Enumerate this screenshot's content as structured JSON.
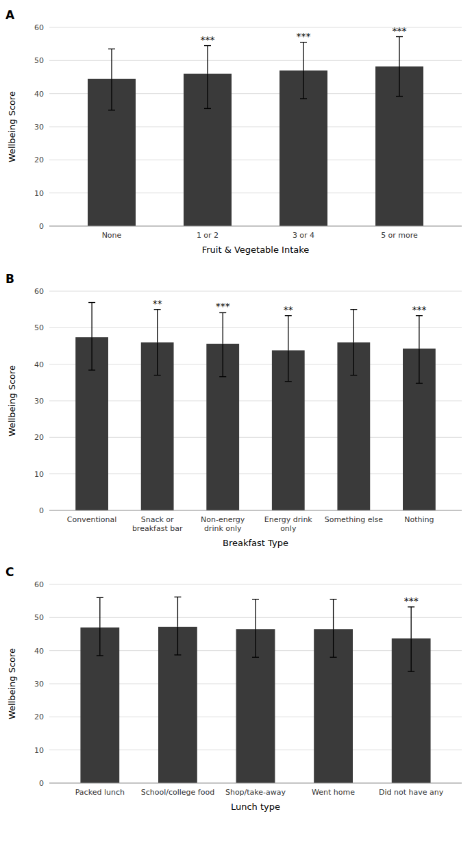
{
  "chart_data": [
    {
      "type": "bar",
      "title": "A",
      "categories": [
        "None",
        "1 or 2",
        "3 or 4",
        "5 or more"
      ],
      "values": [
        44.5,
        46.0,
        47.0,
        48.2
      ],
      "errors_upper": [
        9.0,
        8.5,
        8.5,
        9.0
      ],
      "errors_lower": [
        9.5,
        10.5,
        8.5,
        9.0
      ],
      "significance": [
        null,
        "***",
        "***",
        "***"
      ],
      "xlabel": "Fruit & Vegetable Intake",
      "ylabel": "Wellbeing Score",
      "color": "#3a3a3a",
      "ylim": [
        0,
        60
      ],
      "yticks": [
        0,
        10,
        20,
        30,
        40,
        50,
        60
      ],
      "grid": true
    },
    {
      "type": "bar",
      "title": "B",
      "categories": [
        "Conventional",
        "Snack or\nbreakfast bar",
        "Non-energy\ndrink only",
        "Energy drink\nonly",
        "Something else",
        "Nothing"
      ],
      "values": [
        47.4,
        46.0,
        45.6,
        43.8,
        46.0,
        44.3
      ],
      "errors_upper": [
        9.5,
        9.0,
        8.5,
        9.5,
        9.0,
        9.0
      ],
      "errors_lower": [
        9.0,
        9.0,
        9.0,
        8.5,
        9.0,
        9.5
      ],
      "significance": [
        null,
        "**",
        "***",
        "**",
        null,
        "***"
      ],
      "xlabel": "Breakfast Type",
      "ylabel": "Wellbeing Score",
      "color": "#3a3a3a",
      "ylim": [
        0,
        60
      ],
      "yticks": [
        0,
        10,
        20,
        30,
        40,
        50,
        60
      ],
      "grid": true
    },
    {
      "type": "bar",
      "title": "C",
      "categories": [
        "Packed lunch",
        "School/college food",
        "Shop/take-away",
        "Went home",
        "Did not have any"
      ],
      "values": [
        47.0,
        47.2,
        46.5,
        46.5,
        43.7
      ],
      "errors_upper": [
        9.0,
        9.0,
        9.0,
        9.0,
        9.5
      ],
      "errors_lower": [
        8.5,
        8.5,
        8.5,
        8.5,
        10.0
      ],
      "significance": [
        null,
        null,
        null,
        null,
        "***"
      ],
      "xlabel": "Lunch type",
      "ylabel": "Wellbeing Score",
      "color": "#3a3a3a",
      "ylim": [
        0,
        60
      ],
      "yticks": [
        0,
        10,
        20,
        30,
        40,
        50,
        60
      ],
      "grid": true
    }
  ]
}
